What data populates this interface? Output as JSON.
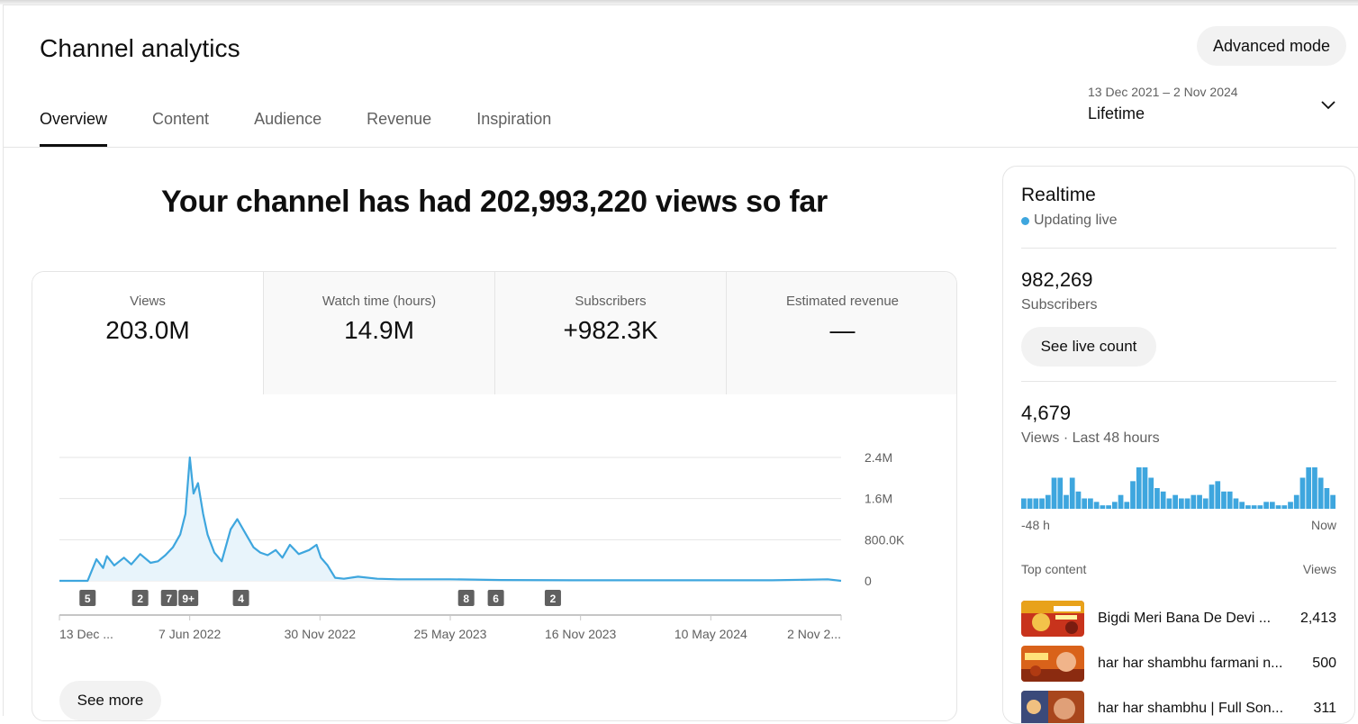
{
  "header": {
    "title": "Channel analytics",
    "advanced_mode_label": "Advanced mode",
    "tabs": [
      {
        "label": "Overview",
        "active": true
      },
      {
        "label": "Content",
        "active": false
      },
      {
        "label": "Audience",
        "active": false
      },
      {
        "label": "Revenue",
        "active": false
      },
      {
        "label": "Inspiration",
        "active": false
      }
    ],
    "date_range": {
      "dates": "13 Dec 2021 – 2 Nov 2024",
      "period": "Lifetime",
      "icon": "chevron-down-icon"
    }
  },
  "main": {
    "headline": "Your channel has had 202,993,220 views so far",
    "metrics": [
      {
        "label": "Views",
        "value": "203.0M"
      },
      {
        "label": "Watch time (hours)",
        "value": "14.9M"
      },
      {
        "label": "Subscribers",
        "value": "+982.3K"
      },
      {
        "label": "Estimated revenue",
        "value": "—"
      }
    ],
    "see_more_label": "See more"
  },
  "chart_data": {
    "type": "area",
    "series": [
      {
        "x": [
          "2021-12-13",
          "2022-01-10",
          "2022-01-20",
          "2022-02-01",
          "2022-02-10",
          "2022-02-15",
          "2022-02-25",
          "2022-03-10",
          "2022-03-20",
          "2022-04-01",
          "2022-04-15",
          "2022-04-25",
          "2022-05-05",
          "2022-05-15",
          "2022-05-25",
          "2022-06-01",
          "2022-06-07",
          "2022-06-12",
          "2022-06-18",
          "2022-06-25",
          "2022-07-01",
          "2022-07-10",
          "2022-07-20",
          "2022-08-01",
          "2022-08-10",
          "2022-08-20",
          "2022-09-01",
          "2022-09-10",
          "2022-09-20",
          "2022-10-01",
          "2022-10-10",
          "2022-10-20",
          "2022-11-01",
          "2022-11-15",
          "2022-11-25",
          "2022-12-01",
          "2022-12-10",
          "2022-12-20",
          "2023-01-01",
          "2023-01-20",
          "2023-02-15",
          "2023-03-15",
          "2023-05-25",
          "2023-08-01",
          "2023-11-16",
          "2024-02-01",
          "2024-05-10",
          "2024-08-01",
          "2024-10-15",
          "2024-11-02"
        ],
        "y": [
          0,
          0,
          0,
          420000,
          250000,
          480000,
          300000,
          450000,
          320000,
          520000,
          350000,
          380000,
          500000,
          650000,
          900000,
          1300000,
          2400000,
          1700000,
          1900000,
          1300000,
          900000,
          550000,
          380000,
          1000000,
          1200000,
          950000,
          650000,
          550000,
          500000,
          600000,
          450000,
          700000,
          520000,
          600000,
          700000,
          450000,
          300000,
          60000,
          40000,
          80000,
          40000,
          30000,
          30000,
          15000,
          10000,
          10000,
          10000,
          10000,
          30000,
          0
        ]
      }
    ],
    "y_ticks": [
      "2.4M",
      "1.6M",
      "800.0K",
      "0"
    ],
    "ylim": [
      0,
      2400000
    ],
    "x_tick_labels": [
      "13 Dec ...",
      "7 Jun 2022",
      "30 Nov 2022",
      "25 May 2023",
      "16 Nov 2023",
      "10 May 2024",
      "2 Nov 2..."
    ],
    "markers": [
      {
        "x": "2022-01-20",
        "label": "5"
      },
      {
        "x": "2022-04-01",
        "label": "2"
      },
      {
        "x": "2022-05-10",
        "label": "7"
      },
      {
        "x": "2022-06-05",
        "label": "9+"
      },
      {
        "x": "2022-08-15",
        "label": "4"
      },
      {
        "x": "2023-06-15",
        "label": "8"
      },
      {
        "x": "2023-07-25",
        "label": "6"
      },
      {
        "x": "2023-10-10",
        "label": "2"
      }
    ],
    "grid": true,
    "color": "#3ea6de",
    "fill_color": "#e8f4fb"
  },
  "realtime": {
    "title": "Realtime",
    "status": "Updating live",
    "subscribers_value": "982,269",
    "subscribers_label": "Subscribers",
    "live_count_label": "See live count",
    "views_value": "4,679",
    "views_label": "Views · Last 48 hours",
    "bar_values": [
      3,
      3,
      3,
      3,
      4,
      9,
      9,
      4,
      9,
      5,
      3,
      3,
      2,
      1,
      1,
      2,
      4,
      2,
      8,
      12,
      12,
      9,
      6,
      5,
      3,
      4,
      3,
      3,
      4,
      4,
      3,
      7,
      8,
      5,
      5,
      3,
      2,
      1,
      1,
      1,
      2,
      2,
      1,
      1,
      2,
      4,
      9,
      12,
      12,
      9,
      6,
      4
    ],
    "axis_left": "-48 h",
    "axis_right": "Now",
    "top_content_label": "Top content",
    "views_column_label": "Views",
    "top_content": [
      {
        "title": "Bigdi Meri Bana De Devi ...",
        "views": "2,413"
      },
      {
        "title": "har har shambhu farmani n...",
        "views": "500"
      },
      {
        "title": "har har shambhu | Full Son...",
        "views": "311"
      }
    ]
  }
}
